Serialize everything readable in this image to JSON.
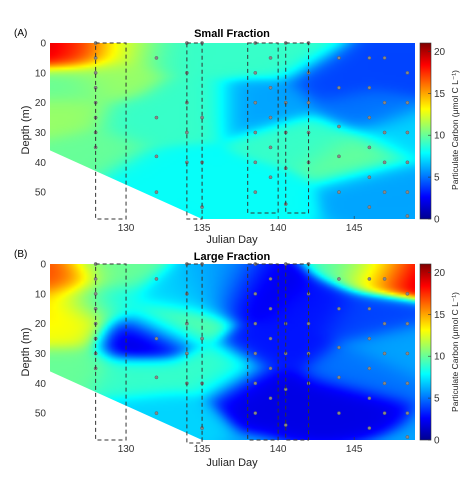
{
  "colors": {
    "colormap": [
      "#00008f",
      "#0000ff",
      "#0080ff",
      "#00ffff",
      "#80ff80",
      "#ffff00",
      "#ff8000",
      "#ff0000",
      "#800000"
    ],
    "box": "#333333",
    "station": "#888888"
  },
  "chart_data": [
    {
      "type": "heatmap",
      "panel_label": "(A)",
      "title": "Small Fraction",
      "xlabel": "Julian Day",
      "ylabel": "Depth (m)",
      "colorbar_label": "Particulate Carbon (μmol C L⁻¹)",
      "xlim": [
        125,
        149
      ],
      "ylim": [
        0,
        59
      ],
      "y_reversed": true,
      "xticks": [
        130,
        135,
        140,
        145
      ],
      "yticks": [
        0,
        10,
        20,
        30,
        40,
        50
      ],
      "clim": [
        0,
        21
      ],
      "cticks": [
        0,
        5,
        10,
        15,
        20
      ],
      "bottom_boundary": [
        [
          125,
          36
        ],
        [
          135,
          59
        ]
      ],
      "background_level": 7,
      "field": [
        {
          "day": 125.5,
          "depth": 1,
          "value": 20
        },
        {
          "day": 127,
          "depth": 1,
          "value": 16
        },
        {
          "day": 130,
          "depth": 1,
          "value": 12
        },
        {
          "day": 133,
          "depth": 2,
          "value": 9
        },
        {
          "day": 126,
          "depth": 14,
          "value": 10
        },
        {
          "day": 129,
          "depth": 12,
          "value": 11
        },
        {
          "day": 126,
          "depth": 24,
          "value": 11
        },
        {
          "day": 131,
          "depth": 26,
          "value": 9
        },
        {
          "day": 128,
          "depth": 36,
          "value": 10
        },
        {
          "day": 132,
          "depth": 44,
          "value": 8
        },
        {
          "day": 137,
          "depth": 3,
          "value": 9
        },
        {
          "day": 140,
          "depth": 4,
          "value": 9
        },
        {
          "day": 139,
          "depth": 20,
          "value": 6
        },
        {
          "day": 144,
          "depth": 12,
          "value": 4
        },
        {
          "day": 146,
          "depth": 22,
          "value": 5
        },
        {
          "day": 148,
          "depth": 10,
          "value": 4
        },
        {
          "day": 142,
          "depth": 33,
          "value": 9
        },
        {
          "day": 145,
          "depth": 38,
          "value": 10
        },
        {
          "day": 147,
          "depth": 48,
          "value": 6
        },
        {
          "day": 138,
          "depth": 50,
          "value": 8
        },
        {
          "day": 134,
          "depth": 20,
          "value": 9
        },
        {
          "day": 148.5,
          "depth": 30,
          "value": 7
        }
      ],
      "stations": [
        {
          "day": 128,
          "depths": [
            0,
            5,
            10,
            15,
            20,
            25,
            30,
            35
          ]
        },
        {
          "day": 132,
          "depths": [
            5,
            25,
            38,
            50
          ]
        },
        {
          "day": 134,
          "depths": [
            0,
            10,
            20,
            30,
            40
          ]
        },
        {
          "day": 135,
          "depths": [
            0,
            25,
            40,
            55
          ]
        },
        {
          "day": 138.5,
          "depths": [
            0,
            10,
            20,
            30,
            40,
            50
          ]
        },
        {
          "day": 139.5,
          "depths": [
            5,
            15,
            25,
            35,
            45
          ]
        },
        {
          "day": 140.5,
          "depths": [
            0,
            20,
            30,
            42,
            54
          ]
        },
        {
          "day": 142,
          "depths": [
            0,
            10,
            20,
            30,
            40
          ]
        },
        {
          "day": 144,
          "depths": [
            5,
            15,
            28,
            38,
            50
          ]
        },
        {
          "day": 146,
          "depths": [
            5,
            15,
            25,
            35,
            45,
            55
          ]
        },
        {
          "day": 147,
          "depths": [
            5,
            20,
            30,
            40,
            50
          ]
        },
        {
          "day": 148.5,
          "depths": [
            10,
            20,
            30,
            40,
            50,
            58
          ]
        }
      ],
      "boxes": [
        {
          "x0": 128,
          "x1": 130,
          "y0": 0,
          "y1": 59
        },
        {
          "x0": 134,
          "x1": 135,
          "y0": 0,
          "y1": 59
        },
        {
          "x0": 138,
          "x1": 140,
          "y0": 0,
          "y1": 57
        },
        {
          "x0": 140.5,
          "x1": 142,
          "y0": 0,
          "y1": 57
        }
      ]
    },
    {
      "type": "heatmap",
      "panel_label": "(B)",
      "title": "Large Fraction",
      "xlabel": "Julian Day",
      "ylabel": "Depth (m)",
      "colorbar_label": "Particulate Carbon (μmol C L⁻¹)",
      "xlim": [
        125,
        149
      ],
      "ylim": [
        0,
        59
      ],
      "y_reversed": true,
      "xticks": [
        130,
        135,
        140,
        145
      ],
      "yticks": [
        0,
        10,
        20,
        30,
        40,
        50
      ],
      "clim": [
        0,
        21
      ],
      "cticks": [
        0,
        5,
        10,
        15,
        20
      ],
      "bottom_boundary": [
        [
          125,
          36
        ],
        [
          135,
          59
        ]
      ],
      "background_level": 6,
      "field": [
        {
          "day": 125.5,
          "depth": 5,
          "value": 17
        },
        {
          "day": 126,
          "depth": 14,
          "value": 14
        },
        {
          "day": 126,
          "depth": 22,
          "value": 13
        },
        {
          "day": 129,
          "depth": 2,
          "value": 10
        },
        {
          "day": 128,
          "depth": 12,
          "value": 8
        },
        {
          "day": 126,
          "depth": 34,
          "value": 10
        },
        {
          "day": 131,
          "depth": 25,
          "value": 1.5
        },
        {
          "day": 133,
          "depth": 20,
          "value": 10
        },
        {
          "day": 134,
          "depth": 10,
          "value": 7
        },
        {
          "day": 136,
          "depth": 8,
          "value": 6
        },
        {
          "day": 138.5,
          "depth": 10,
          "value": 2
        },
        {
          "day": 140,
          "depth": 28,
          "value": 3
        },
        {
          "day": 139,
          "depth": 42,
          "value": 2
        },
        {
          "day": 136,
          "depth": 36,
          "value": 9
        },
        {
          "day": 142,
          "depth": 15,
          "value": 3
        },
        {
          "day": 143,
          "depth": 46,
          "value": 2
        },
        {
          "day": 146,
          "depth": 18,
          "value": 4
        },
        {
          "day": 148,
          "depth": 2,
          "value": 21
        },
        {
          "day": 146.5,
          "depth": 1,
          "value": 9
        },
        {
          "day": 148,
          "depth": 28,
          "value": 6
        },
        {
          "day": 145,
          "depth": 36,
          "value": 5
        },
        {
          "day": 131,
          "depth": 38,
          "value": 9
        },
        {
          "day": 132,
          "depth": 50,
          "value": 7
        }
      ],
      "stations": [
        {
          "day": 128,
          "depths": [
            0,
            5,
            10,
            15,
            20,
            25,
            30,
            35
          ]
        },
        {
          "day": 132,
          "depths": [
            5,
            25,
            38,
            50
          ]
        },
        {
          "day": 134,
          "depths": [
            0,
            10,
            20,
            30,
            40
          ]
        },
        {
          "day": 135,
          "depths": [
            0,
            25,
            40,
            55
          ]
        },
        {
          "day": 138.5,
          "depths": [
            0,
            10,
            20,
            30,
            40,
            50
          ]
        },
        {
          "day": 139.5,
          "depths": [
            5,
            15,
            25,
            35,
            45
          ]
        },
        {
          "day": 140.5,
          "depths": [
            0,
            20,
            30,
            42,
            54
          ]
        },
        {
          "day": 142,
          "depths": [
            0,
            10,
            20,
            30,
            40
          ]
        },
        {
          "day": 144,
          "depths": [
            5,
            15,
            28,
            38,
            50
          ]
        },
        {
          "day": 146,
          "depths": [
            5,
            15,
            25,
            35,
            45,
            55
          ]
        },
        {
          "day": 147,
          "depths": [
            5,
            20,
            30,
            40,
            50
          ]
        },
        {
          "day": 148.5,
          "depths": [
            10,
            20,
            30,
            40,
            50,
            58
          ]
        }
      ],
      "boxes": [
        {
          "x0": 128,
          "x1": 130,
          "y0": 0,
          "y1": 59
        },
        {
          "x0": 134,
          "x1": 135,
          "y0": 0,
          "y1": 60
        },
        {
          "x0": 138,
          "x1": 140,
          "y0": 0,
          "y1": 59
        },
        {
          "x0": 140.5,
          "x1": 142,
          "y0": 0,
          "y1": 59
        }
      ]
    }
  ]
}
